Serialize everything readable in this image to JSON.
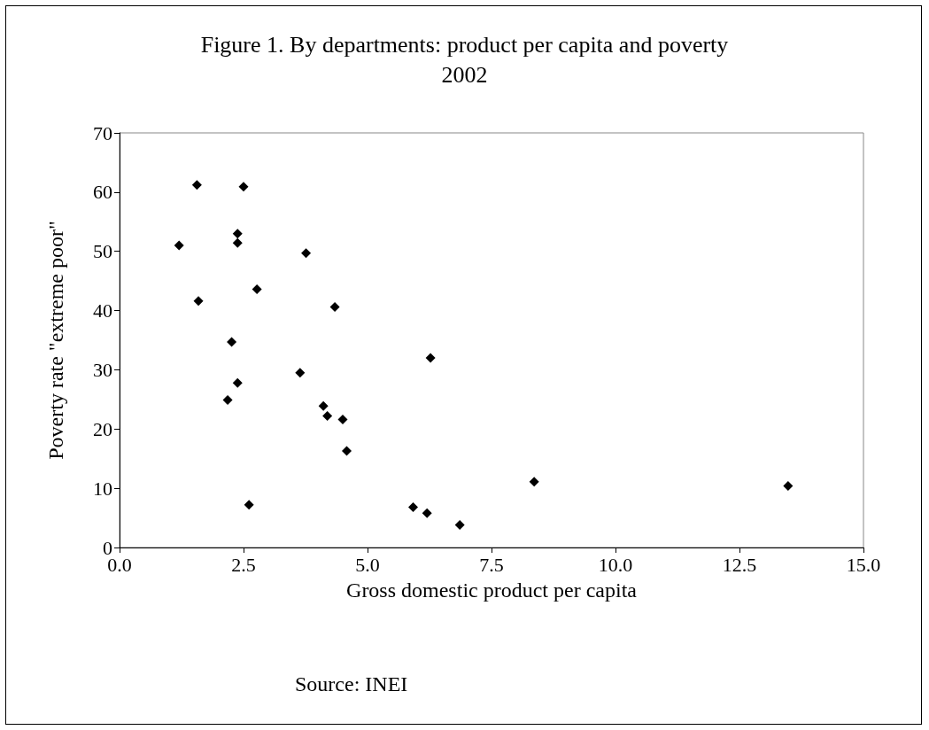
{
  "chart_data": {
    "type": "scatter",
    "title": "Figure 1. By departments: product per capita and poverty\n2002",
    "xlabel": "Gross domestic product per capita",
    "ylabel": "Poverty rate \"extreme poor\"",
    "annotations": [
      "Source: INEI"
    ],
    "x": [
      1.56,
      2.5,
      2.38,
      2.38,
      1.2,
      3.76,
      2.77,
      1.59,
      4.34,
      2.26,
      3.64,
      2.38,
      2.18,
      4.11,
      4.19,
      4.5,
      4.58,
      2.61,
      6.27,
      5.92,
      6.2,
      6.86,
      8.36,
      13.48
    ],
    "series": [
      {
        "color": "#000000",
        "values": [
          61.2,
          60.9,
          53.0,
          51.4,
          51.0,
          49.7,
          43.6,
          41.6,
          40.6,
          34.7,
          29.5,
          27.8,
          24.9,
          23.9,
          22.2,
          21.6,
          16.3,
          7.2,
          32.0,
          6.8,
          5.8,
          3.8,
          11.1,
          10.4
        ]
      }
    ],
    "xlim": [
      0,
      15
    ],
    "xticks": [
      {
        "value": 0,
        "label": "0.0"
      },
      {
        "value": 2.5,
        "label": "2.5"
      },
      {
        "value": 5,
        "label": "5.0"
      },
      {
        "value": 7.5,
        "label": "7.5"
      },
      {
        "value": 10,
        "label": "10.0"
      },
      {
        "value": 12.5,
        "label": "12.5"
      },
      {
        "value": 15,
        "label": "15.0"
      }
    ],
    "ylim": [
      0,
      70
    ],
    "yticks": [
      0,
      10,
      20,
      30,
      40,
      50,
      60,
      70
    ],
    "grid": false,
    "marker": "diamond"
  }
}
